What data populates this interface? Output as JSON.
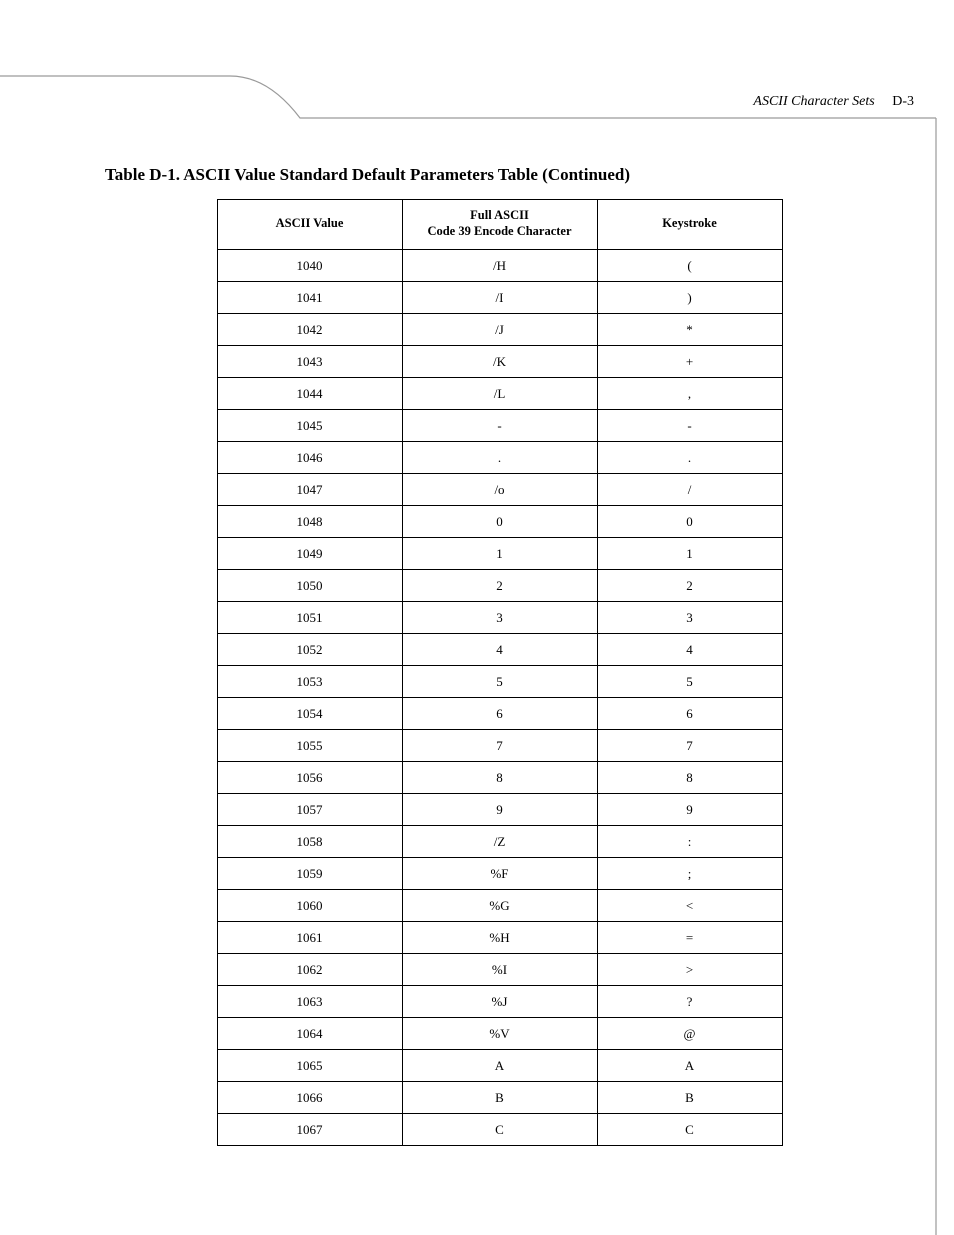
{
  "page": {
    "running_head_title": "ASCII Character Sets",
    "running_head_page": "D-3",
    "caption": "Table D-1.  ASCII Value Standard Default Parameters Table (Continued)"
  },
  "table": {
    "columns": [
      {
        "label_line1": "",
        "label_line2": "ASCII Value"
      },
      {
        "label_line1": "Full ASCII",
        "label_line2": "Code 39 Encode Character"
      },
      {
        "label_line1": "",
        "label_line2": "Keystroke"
      }
    ],
    "rows": [
      [
        "1040",
        "/H",
        "("
      ],
      [
        "1041",
        "/I",
        ")"
      ],
      [
        "1042",
        "/J",
        "*"
      ],
      [
        "1043",
        "/K",
        "+"
      ],
      [
        "1044",
        "/L",
        ","
      ],
      [
        "1045",
        "-",
        "-"
      ],
      [
        "1046",
        ".",
        "."
      ],
      [
        "1047",
        "/o",
        "/"
      ],
      [
        "1048",
        "0",
        "0"
      ],
      [
        "1049",
        "1",
        "1"
      ],
      [
        "1050",
        "2",
        "2"
      ],
      [
        "1051",
        "3",
        "3"
      ],
      [
        "1052",
        "4",
        "4"
      ],
      [
        "1053",
        "5",
        "5"
      ],
      [
        "1054",
        "6",
        "6"
      ],
      [
        "1055",
        "7",
        "7"
      ],
      [
        "1056",
        "8",
        "8"
      ],
      [
        "1057",
        "9",
        "9"
      ],
      [
        "1058",
        "/Z",
        ":"
      ],
      [
        "1059",
        "%F",
        ";"
      ],
      [
        "1060",
        "%G",
        "<"
      ],
      [
        "1061",
        "%H",
        "="
      ],
      [
        "1062",
        "%I",
        ">"
      ],
      [
        "1063",
        "%J",
        "?"
      ],
      [
        "1064",
        "%V",
        "@"
      ],
      [
        "1065",
        "A",
        "A"
      ],
      [
        "1066",
        "B",
        "B"
      ],
      [
        "1067",
        "C",
        "C"
      ]
    ]
  },
  "style": {
    "line_color": "#9a9a9a",
    "line_width": 1.2
  }
}
